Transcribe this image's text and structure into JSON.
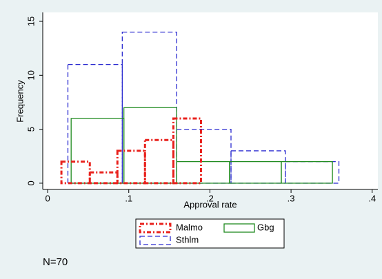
{
  "chart_data": {
    "type": "histogram",
    "xlabel": "Approval rate",
    "ylabel": "Frequency",
    "xlim": [
      -0.006,
      0.407
    ],
    "ylim": [
      -0.58,
      15.83
    ],
    "xticks": [
      0,
      {
        "value": 0.1,
        "label": ".1"
      },
      {
        "value": 0.2,
        "label": ".2"
      },
      {
        "value": 0.3,
        "label": ".3"
      },
      {
        "value": 0.4,
        "label": ".4"
      }
    ],
    "yticks": [
      0,
      5,
      10,
      15
    ],
    "series": [
      {
        "name": "Malmo",
        "color": "#e8211c",
        "line_style": "dashdot",
        "bins": [
          0.017,
          0.052,
          0.086,
          0.12,
          0.155,
          0.189
        ],
        "values": [
          2,
          1,
          3,
          4,
          6
        ]
      },
      {
        "name": "Gbg",
        "color": "#1f8a1f",
        "line_style": "solid",
        "bins": [
          0.029,
          0.094,
          0.159,
          0.224,
          0.288,
          0.351
        ],
        "values": [
          6,
          7,
          2,
          2,
          2
        ]
      },
      {
        "name": "Sthlm",
        "color": "#2a2ad0",
        "line_style": "dashed",
        "bins": [
          0.025,
          0.092,
          0.159,
          0.226,
          0.293,
          0.359
        ],
        "values": [
          11,
          14,
          5,
          3,
          2
        ]
      }
    ],
    "note": "N=70"
  }
}
